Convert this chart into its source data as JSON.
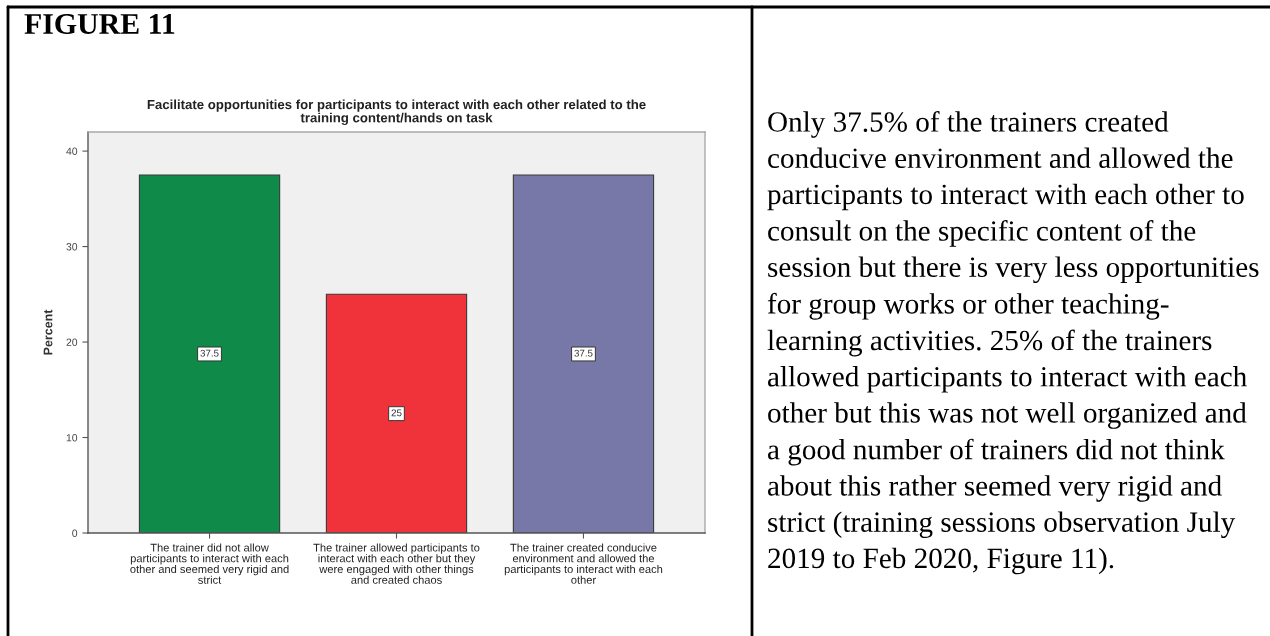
{
  "chart_data": {
    "type": "bar",
    "title": "Facilitate opportunities for participants to interact with each other related to the\ntraining content/hands on task",
    "ylabel": "Percent",
    "categories": [
      "The trainer did not allow\nparticipants to interact with each\nother and seemed very rigid and\nstrict",
      "The trainer allowed participants to\ninteract with each other but they\nwere engaged with other things\nand created chaos",
      "The trainer created conducive\nenvironment and allowed the\nparticipants to interact with each\nother"
    ],
    "values": [
      37.5,
      25,
      37.5
    ],
    "colors": [
      "#0f8a48",
      "#f0323a",
      "#7878a8"
    ],
    "ylim": [
      0,
      42
    ],
    "yticks": [
      0,
      10,
      20,
      30,
      40
    ],
    "data_labels": true,
    "annotations": [
      "FIGURE 11",
      "Only 37.5% of the trainers created\nconducive environment and allowed the\nparticipants to interact with each other to\nconsult on the specific content of the\nsession but there is very less opportunities\nfor group works or other teaching-\nlearning activities. 25% of the trainers\nallowed participants to interact with each\nother but this was not well organized and\na good number of trainers did not think\nabout this rather seemed very rigid and\nstrict (training sessions observation July\n2019 to Feb 2020, Figure 11)."
    ]
  }
}
